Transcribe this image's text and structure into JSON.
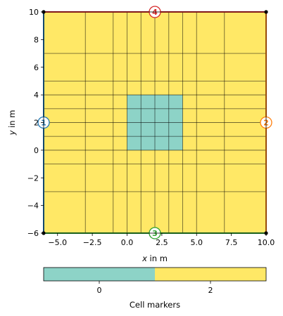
{
  "chart_data": {
    "type": "heatmap",
    "title": "",
    "xlabel": "x in m",
    "xlabel_var": "x",
    "xlabel_unit": " in m",
    "ylabel": "y in m",
    "ylabel_var": "y",
    "ylabel_unit": " in m",
    "xlim": [
      -6,
      10
    ],
    "ylim": [
      -6,
      10
    ],
    "x_ticks": [
      -5,
      -2.5,
      0,
      2.5,
      5,
      7.5,
      10
    ],
    "x_tick_labels": [
      "−5.0",
      "−2.5",
      "0.0",
      "2.5",
      "5.0",
      "7.5",
      "10.0"
    ],
    "y_ticks": [
      -6,
      -4,
      -2,
      0,
      2,
      4,
      6,
      8,
      10
    ],
    "y_tick_labels": [
      "−6",
      "−4",
      "−2",
      "0",
      "2",
      "4",
      "6",
      "8",
      "10"
    ],
    "mesh_x_nodes": [
      -6,
      -3,
      -1,
      0,
      1,
      2,
      3,
      4,
      5,
      7,
      10
    ],
    "mesh_y_nodes": [
      -6,
      -3,
      -1,
      0,
      1,
      2,
      3,
      4,
      5,
      7,
      10
    ],
    "regions": [
      {
        "marker": 2,
        "x": [
          -6,
          10
        ],
        "y": [
          -6,
          10
        ],
        "color": "#ffe866"
      },
      {
        "marker": 0,
        "x": [
          0,
          4
        ],
        "y": [
          0,
          4
        ],
        "color": "#8dd3c7"
      }
    ],
    "boundary_markers": [
      {
        "label": "1",
        "side": "left",
        "x": -6,
        "y": 2,
        "color": "#1f77b4"
      },
      {
        "label": "2",
        "side": "right",
        "x": 10,
        "y": 2,
        "color": "#ff7f0e"
      },
      {
        "label": "3",
        "side": "bottom",
        "x": 2,
        "y": -6,
        "color": "#2ca02c"
      },
      {
        "label": "4",
        "side": "top",
        "x": 2,
        "y": 10,
        "color": "#d62728"
      }
    ],
    "colorbar": {
      "label": "Cell markers",
      "placement": "bottom",
      "ticks": [
        0,
        2
      ],
      "tick_labels": [
        "0",
        "2"
      ],
      "segments": [
        {
          "marker": 0,
          "color": "#8dd3c7"
        },
        {
          "marker": 2,
          "color": "#ffe866"
        }
      ]
    }
  }
}
